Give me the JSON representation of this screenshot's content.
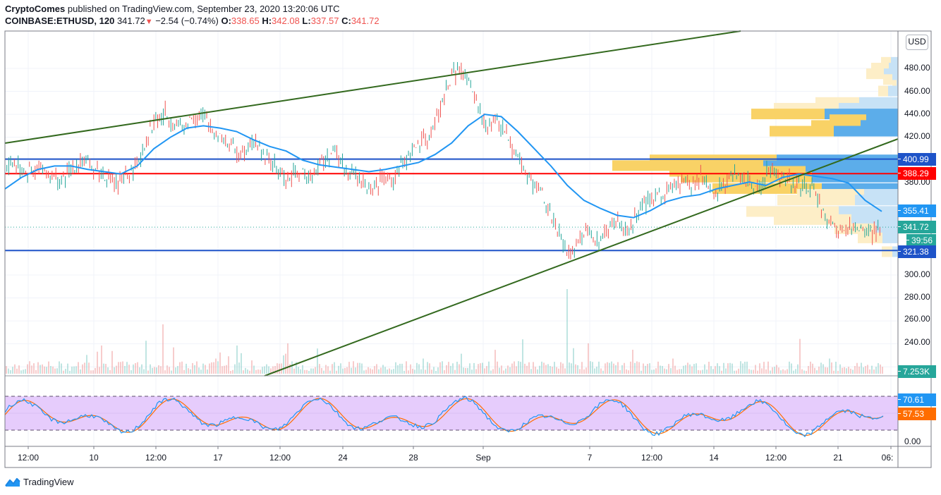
{
  "header": {
    "author": "CryptoComes",
    "published_text": "published on TradingView.com, September 23, 2020 13:20:06 UTC",
    "symbol": "COINBASE:ETHUSD, 120",
    "last": "341.72",
    "change": "−2.54 (−0.74%)",
    "o_label": "O:",
    "o": "338.65",
    "h_label": "H:",
    "h": "342.08",
    "l_label": "L:",
    "l": "337.57",
    "c_label": "C:",
    "c": "341.72"
  },
  "currency_button": "USD",
  "price_axis": {
    "labels": [
      "480.00",
      "460.00",
      "440.00",
      "420.00",
      "380.00",
      "300.00",
      "280.00",
      "260.00",
      "240.00"
    ],
    "tags": [
      {
        "label": "400.99",
        "color": "#1e53c8"
      },
      {
        "label": "388.29",
        "color": "#ff0000"
      },
      {
        "label": "355.41",
        "color": "#2196f3"
      },
      {
        "label": "341.72",
        "color": "#26a69a"
      },
      {
        "label": "39:56",
        "color": "#26a69a"
      },
      {
        "label": "321.38",
        "color": "#1e53c8"
      },
      {
        "label": "7.253K",
        "color": "#26a69a"
      }
    ]
  },
  "stoch_axis": {
    "labels": [
      "0.00"
    ],
    "tags": [
      {
        "label": "70.61",
        "color": "#2196f3"
      },
      {
        "label": "57.53",
        "color": "#ff6d00"
      }
    ]
  },
  "time_axis": {
    "labels": [
      "12:00",
      "10",
      "12:00",
      "17",
      "12:00",
      "24",
      "28",
      "Sep",
      "7",
      "12:00",
      "14",
      "12:00",
      "21",
      "06:"
    ]
  },
  "branding": {
    "name": "TradingView"
  },
  "chart_data": {
    "type": "candlestick",
    "title": "COINBASE:ETHUSD, 120",
    "xlabel": "",
    "ylabel": "USD",
    "ylim": [
      300,
      490
    ],
    "x_ticks": [
      "12:00",
      "10",
      "12:00",
      "17",
      "12:00",
      "24",
      "28",
      "Sep",
      "7",
      "12:00",
      "14",
      "12:00",
      "21",
      "06:"
    ],
    "horizontal_levels": [
      {
        "price": 400.99,
        "color": "#1e53c8"
      },
      {
        "price": 388.29,
        "color": "#ff0000"
      },
      {
        "price": 321.38,
        "color": "#1e53c8"
      }
    ],
    "last_price": 341.72,
    "moving_average_last": 355.41,
    "trendlines": [
      {
        "name": "upper",
        "from": [
          0,
          415
        ],
        "to": [
          1050,
          494
        ]
      },
      {
        "name": "lower",
        "from": [
          375,
          200
        ],
        "to": [
          1273,
          418
        ]
      }
    ],
    "price_path": [
      395,
      398,
      392,
      388,
      393,
      385,
      380,
      392,
      400,
      395,
      390,
      384,
      378,
      388,
      395,
      420,
      435,
      440,
      432,
      428,
      440,
      437,
      428,
      420,
      412,
      405,
      418,
      410,
      400,
      390,
      382,
      390,
      385,
      395,
      400,
      408,
      395,
      388,
      380,
      375,
      385,
      382,
      395,
      408,
      412,
      420,
      440,
      465,
      480,
      470,
      450,
      430,
      435,
      425,
      410,
      395,
      380,
      372,
      350,
      330,
      318,
      335,
      340,
      328,
      342,
      345,
      338,
      350,
      362,
      368,
      372,
      376,
      380,
      378,
      385,
      372,
      378,
      388,
      384,
      382,
      375,
      392,
      388,
      385,
      380,
      376,
      372,
      350,
      340,
      338,
      342,
      340,
      338,
      341.72
    ],
    "ma_path": [
      375,
      385,
      392,
      395,
      395,
      392,
      390,
      388,
      395,
      410,
      420,
      428,
      430,
      428,
      425,
      418,
      412,
      408,
      400,
      396,
      394,
      392,
      390,
      392,
      395,
      398,
      405,
      415,
      430,
      440,
      438,
      425,
      410,
      395,
      378,
      365,
      358,
      352,
      350,
      356,
      364,
      368,
      370,
      375,
      378,
      381,
      378,
      385,
      388,
      386,
      384,
      380,
      365,
      355.41
    ],
    "volume_panel": {
      "last_label": "7.253K"
    },
    "stochastic": {
      "k_last": 70.61,
      "d_last": 57.53,
      "upper_band": 80,
      "lower_band": 20,
      "ylim": [
        0,
        100
      ]
    },
    "volume_profile_rows": [
      {
        "price": 485,
        "up": 14,
        "down": 10,
        "active": false
      },
      {
        "price": 480,
        "up": 25,
        "down": 13,
        "active": false
      },
      {
        "price": 475,
        "up": 25,
        "down": 20,
        "active": false
      },
      {
        "price": 470,
        "up": 13,
        "down": 8,
        "active": false
      },
      {
        "price": 465,
        "up": 6,
        "down": 2,
        "active": false
      },
      {
        "price": 460,
        "up": 14,
        "down": 14,
        "active": false
      },
      {
        "price": 450,
        "up": 62,
        "down": 55,
        "active": false
      },
      {
        "price": 445,
        "up": 92,
        "down": 84,
        "active": false
      },
      {
        "price": 440,
        "up": 104,
        "down": 104,
        "active": true
      },
      {
        "price": 435,
        "up": 52,
        "down": 45,
        "active": true
      },
      {
        "price": 430,
        "up": 70,
        "down": 53,
        "active": true
      },
      {
        "price": 425,
        "up": 91,
        "down": 91,
        "active": true
      },
      {
        "price": 400,
        "up": 180,
        "down": 172,
        "active": true
      },
      {
        "price": 395,
        "up": 214,
        "down": 191,
        "active": true
      },
      {
        "price": 390,
        "up": 193,
        "down": 131,
        "active": true
      },
      {
        "price": 385,
        "up": 186,
        "down": 122,
        "active": true
      },
      {
        "price": 375,
        "up": 155,
        "down": 108,
        "active": true
      },
      {
        "price": 370,
        "up": 95,
        "down": 48,
        "active": false
      },
      {
        "price": 365,
        "up": 110,
        "down": 61,
        "active": false
      },
      {
        "price": 355,
        "up": 131,
        "down": 84,
        "active": false
      },
      {
        "price": 348,
        "up": 110,
        "down": 66,
        "active": false
      },
      {
        "price": 340,
        "up": 58,
        "down": 32,
        "active": false
      },
      {
        "price": 332,
        "up": 35,
        "down": 22,
        "active": false
      },
      {
        "price": 320,
        "up": 15,
        "down": 8,
        "active": false
      }
    ]
  }
}
